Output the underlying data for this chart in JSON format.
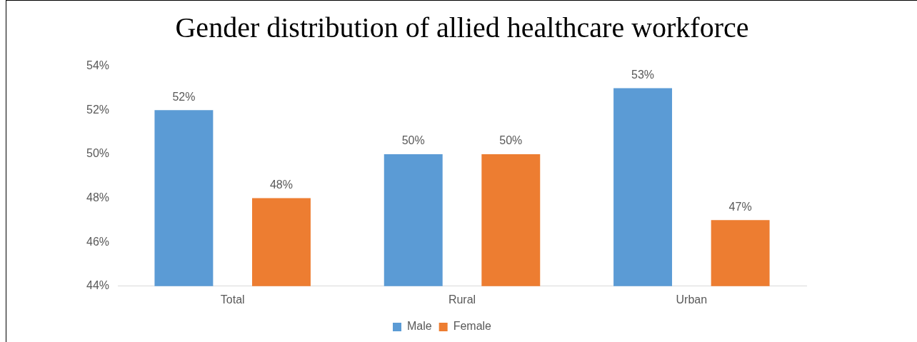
{
  "chart_data": {
    "type": "bar",
    "title": "Gender distribution of allied healthcare workforce",
    "categories": [
      "Total",
      "Rural",
      "Urban"
    ],
    "series": [
      {
        "name": "Male",
        "color": "#5b9bd5",
        "values": [
          52,
          50,
          53
        ],
        "value_labels": [
          "52%",
          "50%",
          "53%"
        ]
      },
      {
        "name": "Female",
        "color": "#ed7d31",
        "values": [
          48,
          50,
          47
        ],
        "value_labels": [
          "48%",
          "50%",
          "47%"
        ]
      }
    ],
    "ylim": [
      44,
      54
    ],
    "yticks": [
      {
        "value": 44,
        "label": "44%"
      },
      {
        "value": 46,
        "label": "46%"
      },
      {
        "value": 48,
        "label": "48%"
      },
      {
        "value": 50,
        "label": "50%"
      },
      {
        "value": 52,
        "label": "52%"
      },
      {
        "value": 54,
        "label": "54%"
      }
    ],
    "grid": false,
    "legend": "bottom"
  }
}
